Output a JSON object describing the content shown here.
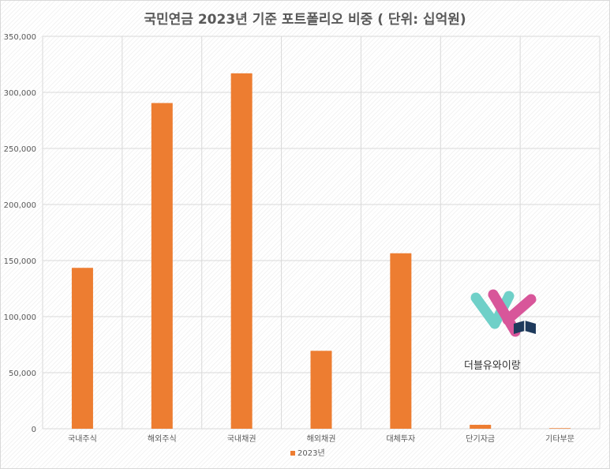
{
  "chart_data": {
    "type": "bar",
    "title": "국민연금 2023년 기준 포트폴리오 비중 ( 단위: 십억원)",
    "categories": [
      "국내주식",
      "해외주식",
      "국내채권",
      "해외채권",
      "대체투자",
      "단기자금",
      "기타부문"
    ],
    "series": [
      {
        "name": "2023년",
        "values": [
          143500,
          290500,
          317000,
          69500,
          156500,
          3500,
          500
        ]
      }
    ],
    "ylim": [
      0,
      350000
    ],
    "yticks": [
      0,
      50000,
      100000,
      150000,
      200000,
      250000,
      300000,
      350000
    ],
    "ytick_labels": [
      "0",
      "50,000",
      "100,000",
      "150,000",
      "200,000",
      "250,000",
      "300,000",
      "350,000"
    ],
    "grid": true,
    "legend": "bottom",
    "bar_color": "#ED7D31",
    "grid_color": "#d9d9d9",
    "label_color": "#595959"
  },
  "watermark": {
    "text": "더블유와이랑",
    "colors": {
      "teal": "#6fd0c8",
      "pink": "#d8569a",
      "book": "#1e3a5c"
    }
  }
}
